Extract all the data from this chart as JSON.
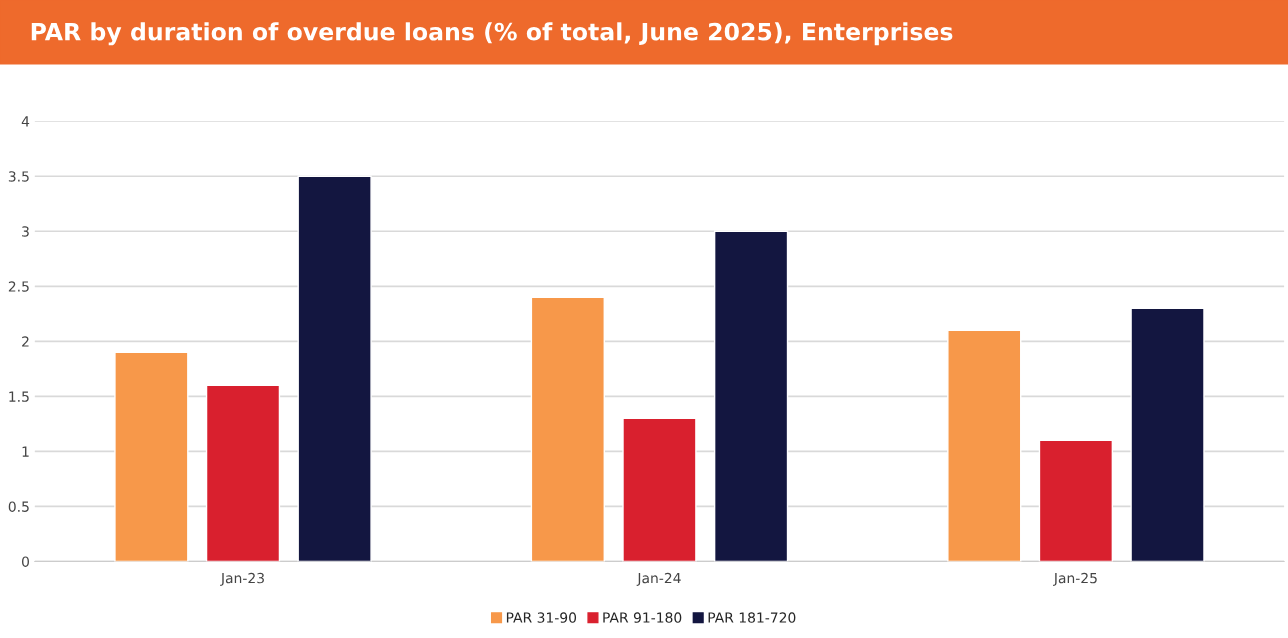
{
  "chart_data": {
    "type": "bar",
    "title": "PAR by duration of overdue loans (% of total, June 2025), Enterprises",
    "categories": [
      "Jan-23",
      "Jan-24",
      "Jan-25"
    ],
    "series": [
      {
        "name": "PAR 31-90",
        "color": "#f7984a",
        "values": [
          1.9,
          2.4,
          2.1
        ]
      },
      {
        "name": "PAR 91-180",
        "color": "#d9202e",
        "values": [
          1.6,
          1.3,
          1.1
        ]
      },
      {
        "name": "PAR 181-720",
        "color": "#131640",
        "values": [
          3.5,
          3.0,
          2.3
        ]
      }
    ],
    "ylim": [
      0,
      4
    ],
    "yticks": [
      0,
      0.5,
      1,
      1.5,
      2,
      2.5,
      3,
      3.5,
      4
    ],
    "grid": "y",
    "legend": "bottom"
  }
}
